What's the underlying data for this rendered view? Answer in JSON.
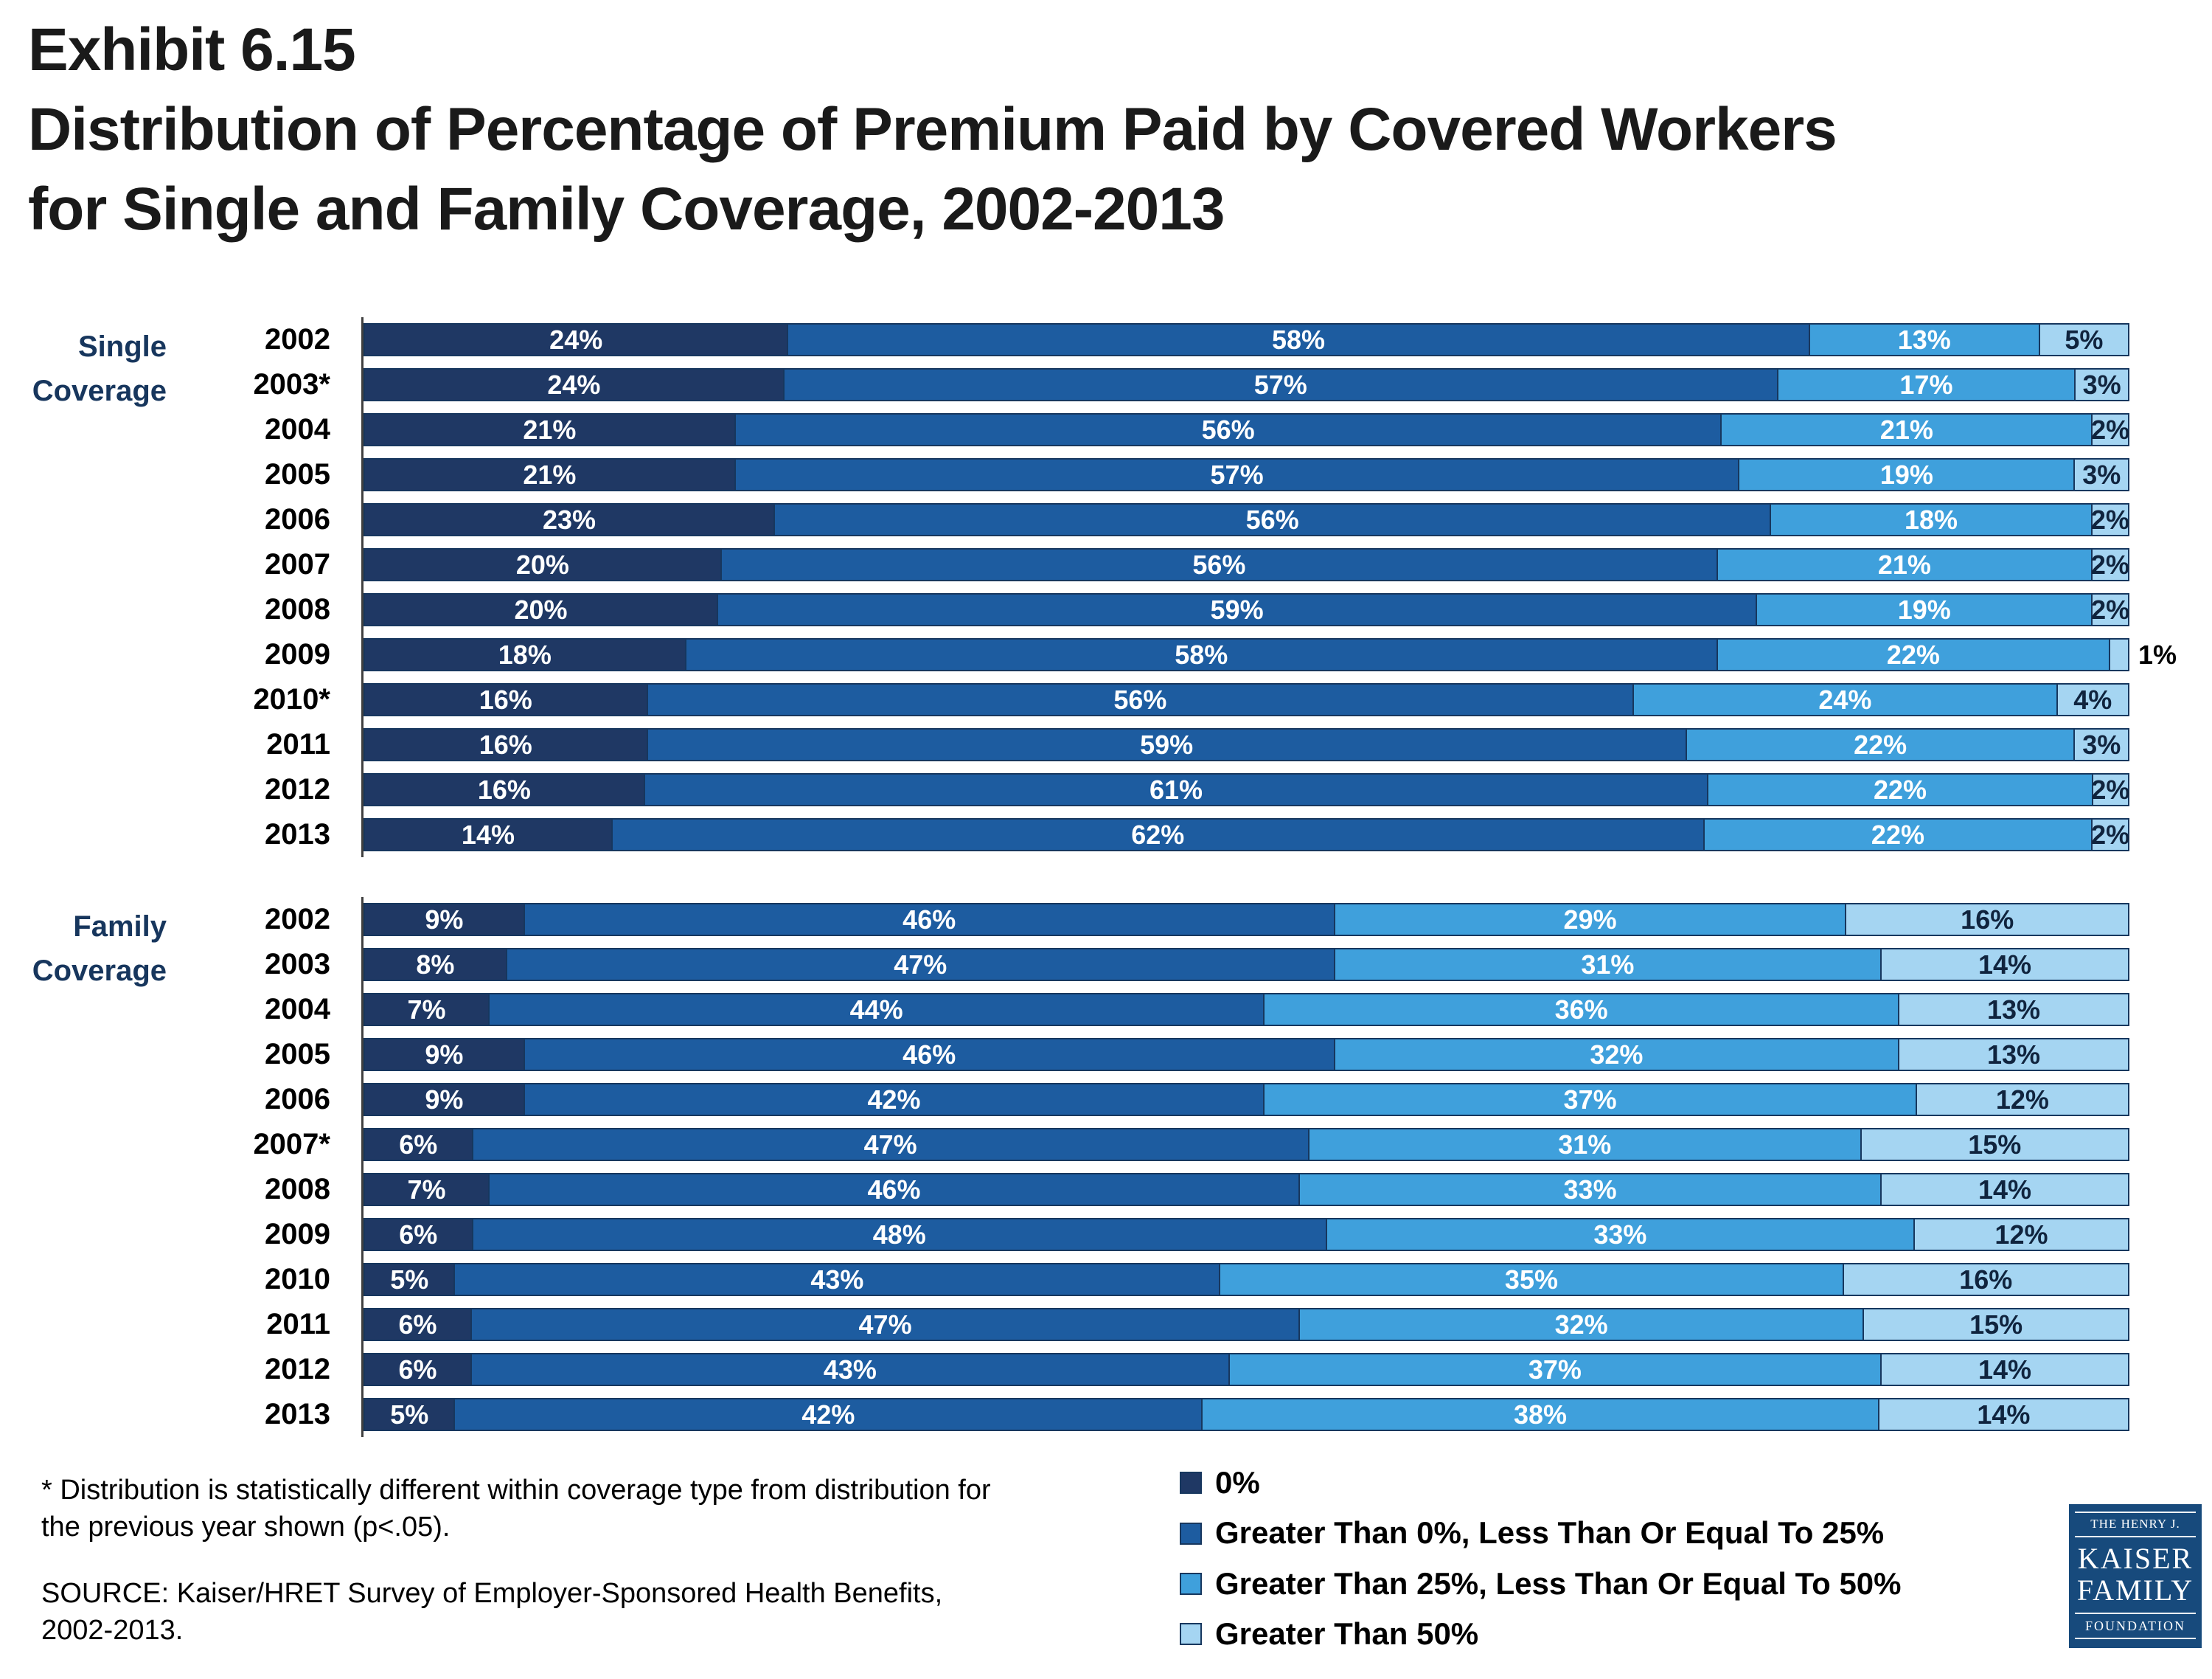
{
  "title": {
    "exhibit": "Exhibit 6.15",
    "line1": "Distribution of Percentage of Premium Paid by Covered Workers",
    "line2": "for Single and Family Coverage, 2002-2013"
  },
  "chart_data": {
    "type": "bar",
    "orientation": "horizontal",
    "stacked": true,
    "value_unit": "%",
    "xlim": [
      0,
      100
    ],
    "series_labels": [
      "0%",
      "Greater Than 0%, Less Than Or Equal To 25%",
      "Greater Than 25%, Less Than Or Equal To 50%",
      "Greater Than 50%"
    ],
    "series_colors": [
      "#1F3864",
      "#1D5CA0",
      "#3FA0DC",
      "#A5D5F2"
    ],
    "label_colors": [
      "#FFFFFF",
      "#FFFFFF",
      "#FFFFFF",
      "#10243E"
    ],
    "groups": [
      {
        "label_line1": "Single",
        "label_line2": "Coverage",
        "rows": [
          {
            "year": "2002",
            "values": [
              24,
              58,
              13,
              5
            ]
          },
          {
            "year": "2003*",
            "values": [
              24,
              57,
              17,
              3
            ]
          },
          {
            "year": "2004",
            "values": [
              21,
              56,
              21,
              2
            ]
          },
          {
            "year": "2005",
            "values": [
              21,
              57,
              19,
              3
            ]
          },
          {
            "year": "2006",
            "values": [
              23,
              56,
              18,
              2
            ]
          },
          {
            "year": "2007",
            "values": [
              20,
              56,
              21,
              2
            ]
          },
          {
            "year": "2008",
            "values": [
              20,
              59,
              19,
              2
            ]
          },
          {
            "year": "2009",
            "values": [
              18,
              58,
              22,
              1
            ]
          },
          {
            "year": "2010*",
            "values": [
              16,
              56,
              24,
              4
            ]
          },
          {
            "year": "2011",
            "values": [
              16,
              59,
              22,
              3
            ]
          },
          {
            "year": "2012",
            "values": [
              16,
              61,
              22,
              2
            ]
          },
          {
            "year": "2013",
            "values": [
              14,
              62,
              22,
              2
            ]
          }
        ]
      },
      {
        "label_line1": "Family",
        "label_line2": "Coverage",
        "rows": [
          {
            "year": "2002",
            "values": [
              9,
              46,
              29,
              16
            ]
          },
          {
            "year": "2003",
            "values": [
              8,
              47,
              31,
              14
            ]
          },
          {
            "year": "2004",
            "values": [
              7,
              44,
              36,
              13
            ]
          },
          {
            "year": "2005",
            "values": [
              9,
              46,
              32,
              13
            ]
          },
          {
            "year": "2006",
            "values": [
              9,
              42,
              37,
              12
            ]
          },
          {
            "year": "2007*",
            "values": [
              6,
              47,
              31,
              15
            ]
          },
          {
            "year": "2008",
            "values": [
              7,
              46,
              33,
              14
            ]
          },
          {
            "year": "2009",
            "values": [
              6,
              48,
              33,
              12
            ]
          },
          {
            "year": "2010",
            "values": [
              5,
              43,
              35,
              16
            ]
          },
          {
            "year": "2011",
            "values": [
              6,
              47,
              32,
              15
            ]
          },
          {
            "year": "2012",
            "values": [
              6,
              43,
              37,
              14
            ]
          },
          {
            "year": "2013",
            "values": [
              5,
              42,
              38,
              14
            ]
          }
        ]
      }
    ]
  },
  "legend": {
    "items": [
      {
        "label": "0%",
        "color": "#1F3864"
      },
      {
        "label": "Greater Than 0%, Less Than Or Equal To 25%",
        "color": "#1D5CA0"
      },
      {
        "label": "Greater Than 25%, Less Than Or Equal To 50%",
        "color": "#3FA0DC"
      },
      {
        "label": "Greater Than 50%",
        "color": "#A5D5F2"
      }
    ]
  },
  "footnotes": {
    "note": "* Distribution is statistically different within coverage type from distribution for the previous year shown (p<.05).",
    "source": "SOURCE:  Kaiser/HRET Survey of Employer-Sponsored Health Benefits, 2002-2013."
  },
  "logo": {
    "line1": "THE HENRY J.",
    "line2": "KAISER",
    "line3": "FAMILY",
    "line4": "FOUNDATION"
  }
}
